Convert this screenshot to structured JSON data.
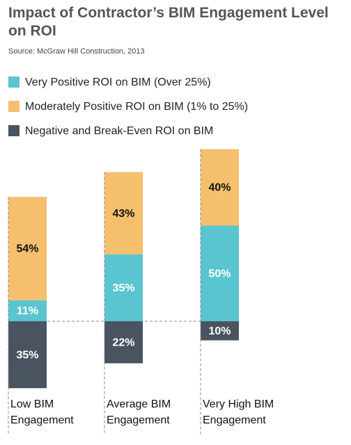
{
  "chart_data": {
    "type": "bar",
    "title": "Impact of Contractor’s BIM Engagement Level on ROI",
    "subtitle": "Source: McGraw Hill Construction, 2013",
    "categories": [
      "Low BIM Engagement",
      "Average BIM Engagement",
      "Very High BIM Engagement"
    ],
    "series": [
      {
        "name": "Very Positive ROI on BIM (Over 25%)",
        "color": "#5bc4d1",
        "values": [
          11,
          35,
          50
        ],
        "value_labels": [
          "11%",
          "35%",
          "50%"
        ]
      },
      {
        "name": "Moderately Positive ROI on BIM (1% to 25%)",
        "color": "#f5bf6e",
        "values": [
          54,
          43,
          40
        ],
        "value_labels": [
          "54%",
          "43%",
          "40%"
        ]
      },
      {
        "name": "Negative and Break-Even ROI on BIM",
        "color": "#4a5460",
        "values": [
          35,
          22,
          10
        ],
        "value_labels": [
          "35%",
          "22%",
          "10%"
        ],
        "direction": "down"
      }
    ]
  }
}
